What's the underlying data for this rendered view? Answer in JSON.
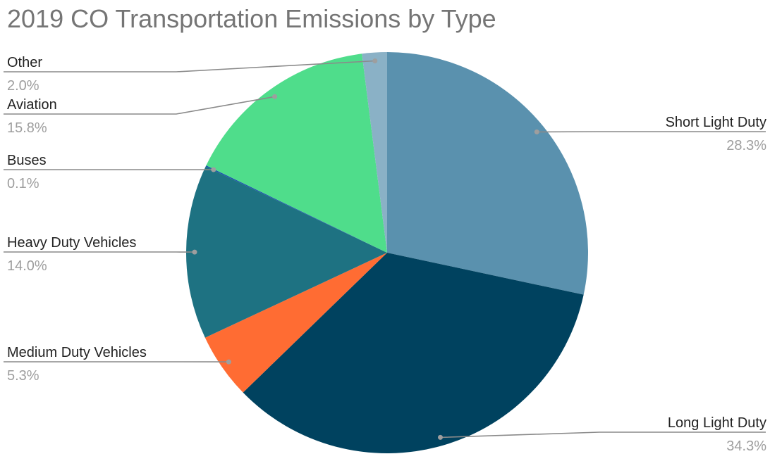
{
  "chart_data": {
    "type": "pie",
    "title": "2019 CO Transportation Emissions by Type",
    "slices": [
      {
        "label": "Short Light Duty",
        "value": 28.3,
        "pct_label": "28.3%",
        "color": "#5a91ae"
      },
      {
        "label": "Long Light Duty",
        "value": 34.3,
        "pct_label": "34.3%",
        "color": "#00425f"
      },
      {
        "label": "Medium Duty Vehicles",
        "value": 5.3,
        "pct_label": "5.3%",
        "color": "#ff6c33"
      },
      {
        "label": "Heavy Duty Vehicles",
        "value": 14.0,
        "pct_label": "14.0%",
        "color": "#1e7282"
      },
      {
        "label": "Buses",
        "value": 0.1,
        "pct_label": "0.1%",
        "color": "#1a5aa8"
      },
      {
        "label": "Aviation",
        "value": 15.8,
        "pct_label": "15.8%",
        "color": "#4fdd8b"
      },
      {
        "label": "Other",
        "value": 2.0,
        "pct_label": "2.0%",
        "color": "#8ab1c6"
      }
    ]
  }
}
